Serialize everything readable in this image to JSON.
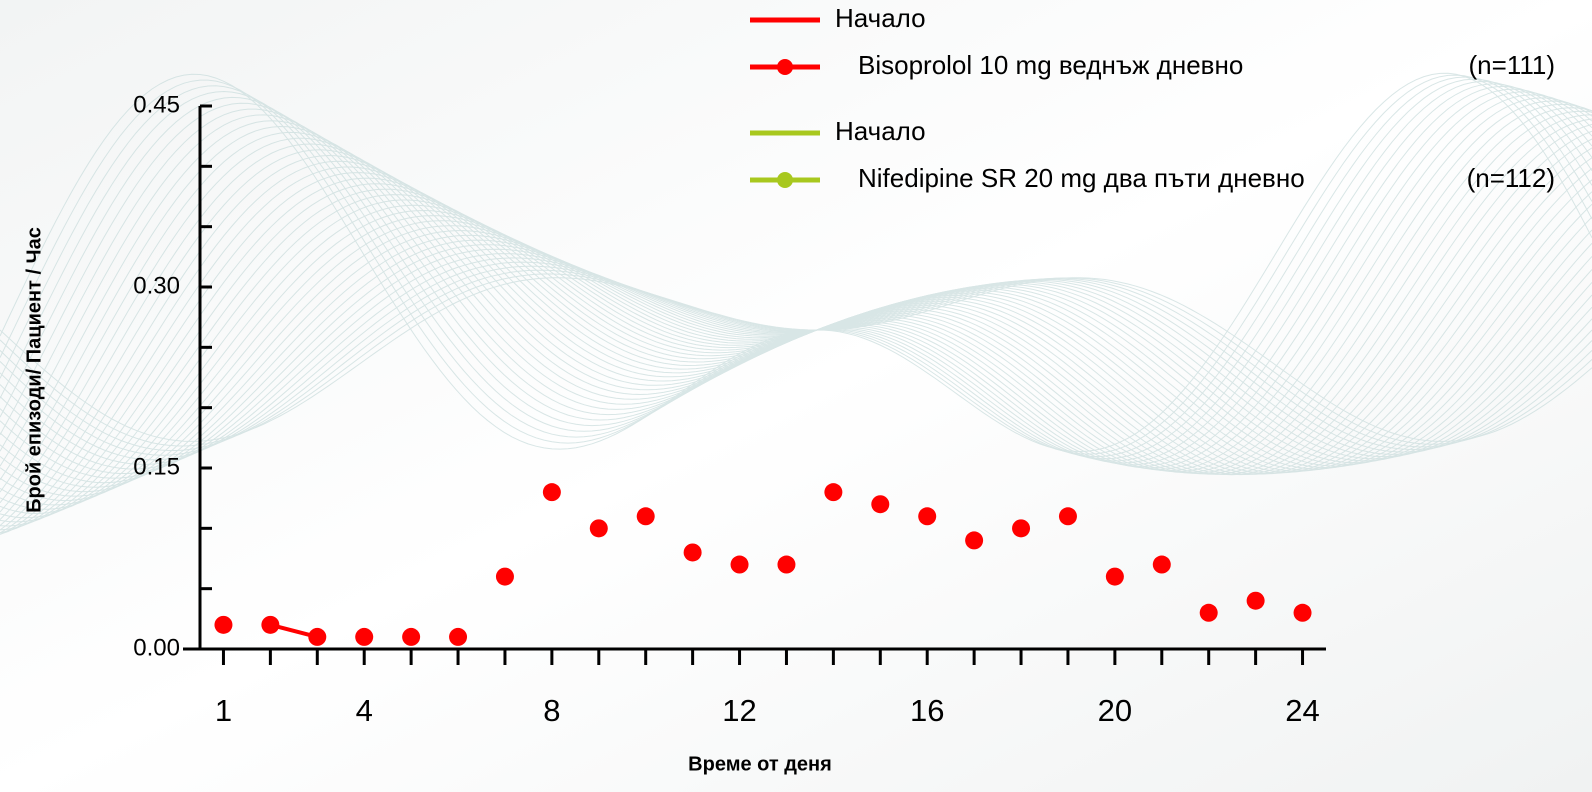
{
  "chart_data": {
    "type": "line",
    "xlabel": "Време от деня",
    "ylabel": "Брой епизоди/ Пациент / Час",
    "x": [
      1,
      2,
      3,
      4,
      5,
      6,
      7,
      8,
      9,
      10,
      11,
      12,
      13,
      14,
      15,
      16,
      17,
      18,
      19,
      20,
      21,
      22,
      23,
      24
    ],
    "xlim": [
      0.5,
      24.5
    ],
    "xticks": [
      1,
      4,
      8,
      12,
      16,
      20,
      24
    ],
    "x_minor_ticks": [
      2,
      3,
      5,
      6,
      7,
      9,
      10,
      11,
      13,
      14,
      15,
      17,
      18,
      19,
      21,
      22,
      23
    ],
    "ylim": [
      0,
      0.45
    ],
    "yticks": [
      {
        "value": 0,
        "label": "0.00"
      },
      {
        "value": 0.15,
        "label": "0.15"
      },
      {
        "value": 0.3,
        "label": "0.30"
      },
      {
        "value": 0.45,
        "label": "0.45"
      }
    ],
    "y_minor_ticks": [
      0.05,
      0.1,
      0.2,
      0.25,
      0.35,
      0.4
    ],
    "series": [
      {
        "name": "Начало",
        "color": "#ff0000",
        "marker": false,
        "values": [
          null,
          0.02,
          0.01,
          null,
          null,
          null,
          null,
          null,
          null,
          null,
          null,
          null,
          null,
          null,
          null,
          null,
          null,
          null,
          null,
          null,
          null,
          null,
          null,
          null
        ]
      },
      {
        "name": "Bisoprolol 10 mg веднъж дневно",
        "n": "(n=111)",
        "color": "#ff0000",
        "marker": true,
        "values": [
          0.02,
          0.02,
          0.01,
          0.01,
          0.01,
          0.01,
          0.06,
          0.13,
          0.1,
          0.11,
          0.08,
          0.07,
          0.07,
          0.13,
          0.12,
          0.11,
          0.09,
          0.1,
          0.11,
          0.06,
          0.07,
          0.03,
          0.04,
          0.03
        ]
      },
      {
        "name": "Начало",
        "color": "#a8c81e",
        "marker": false,
        "values": [
          null,
          null,
          null,
          null,
          null,
          null,
          null,
          null,
          null,
          null,
          null,
          null,
          null,
          null,
          null,
          null,
          null,
          null,
          null,
          null,
          null,
          null,
          null,
          null
        ]
      },
      {
        "name": "Nifedipine SR 20 mg два пъти дневно",
        "n": "(n=112)",
        "color": "#a8c81e",
        "marker": true,
        "values": [
          null,
          null,
          null,
          null,
          null,
          null,
          null,
          null,
          null,
          null,
          null,
          null,
          null,
          null,
          null,
          null,
          null,
          null,
          null,
          null,
          null,
          null,
          null,
          null
        ]
      }
    ]
  }
}
